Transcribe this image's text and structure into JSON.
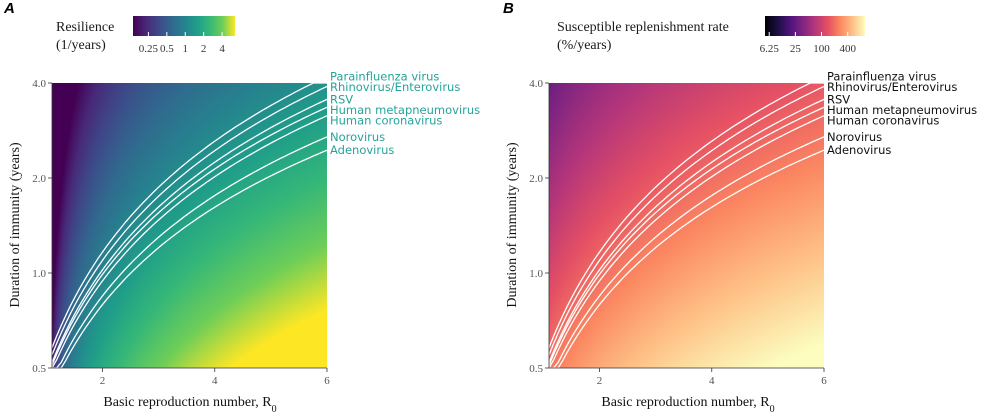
{
  "chart_data": [
    {
      "panel": "A",
      "type": "heatmap",
      "title": "",
      "legend": {
        "title_lines": [
          "Resilience",
          "(1/years)"
        ],
        "scale": "log",
        "palette": "viridis",
        "ticks": [
          0.25,
          0.5,
          1,
          2,
          4
        ],
        "tick_labels": [
          "0.25",
          "0.5",
          "1",
          "2",
          "4"
        ],
        "range": [
          0.14,
          6.5
        ],
        "placement": "top-left"
      },
      "xlabel": "Basic reproduction number, R",
      "xlabel_sub": "0",
      "ylabel": "Duration of immunity (years)",
      "xlim": [
        1.1,
        6
      ],
      "ylim": [
        0.5,
        4.0
      ],
      "yscale": "log",
      "xticks": [
        2,
        4,
        6
      ],
      "xtick_labels": [
        "2",
        "4",
        "6"
      ],
      "yticks": [
        0.5,
        1.0,
        2.0,
        4.0
      ],
      "ytick_labels": [
        "0.5",
        "1.0",
        "2.0",
        "4.0"
      ],
      "label_color": "#27a39b",
      "series": [
        {
          "name": "Parainfluenza virus",
          "values": [
            0.58,
            4.2
          ]
        },
        {
          "name": "Rhinovirus/Enterovirus",
          "values": [
            0.55,
            3.9
          ]
        },
        {
          "name": "RSV",
          "values": [
            0.52,
            3.55
          ]
        },
        {
          "name": "Human metapneumovirus",
          "values": [
            0.51,
            3.35
          ]
        },
        {
          "name": "Human coronavirus",
          "values": [
            0.49,
            3.15
          ]
        },
        {
          "name": "Norovirus",
          "values": [
            0.45,
            2.7
          ]
        },
        {
          "name": "Adenovirus",
          "values": [
            0.43,
            2.45
          ]
        }
      ]
    },
    {
      "panel": "B",
      "type": "heatmap",
      "title": "",
      "legend": {
        "title_lines": [
          "Susceptible replenishment rate",
          "(%/years)"
        ],
        "scale": "log",
        "palette": "magma",
        "ticks": [
          6.25,
          25,
          100,
          400
        ],
        "tick_labels": [
          "6.25",
          "25",
          "100",
          "400"
        ],
        "range": [
          5,
          1000
        ],
        "placement": "top-left"
      },
      "xlabel": "Basic reproduction number, R",
      "xlabel_sub": "0",
      "ylabel": "Duration of immunity (years)",
      "xlim": [
        1.1,
        6
      ],
      "ylim": [
        0.5,
        4.0
      ],
      "yscale": "log",
      "xticks": [
        2,
        4,
        6
      ],
      "xtick_labels": [
        "2",
        "4",
        "6"
      ],
      "yticks": [
        0.5,
        1.0,
        2.0,
        4.0
      ],
      "ytick_labels": [
        "0.5",
        "1.0",
        "2.0",
        "4.0"
      ],
      "label_color": "#111111",
      "series": [
        {
          "name": "Parainfluenza virus",
          "values": [
            0.58,
            4.2
          ]
        },
        {
          "name": "Rhinovirus/Enterovirus",
          "values": [
            0.55,
            3.9
          ]
        },
        {
          "name": "RSV",
          "values": [
            0.52,
            3.55
          ]
        },
        {
          "name": "Human metapneumovirus",
          "values": [
            0.51,
            3.35
          ]
        },
        {
          "name": "Human coronavirus",
          "values": [
            0.49,
            3.15
          ]
        },
        {
          "name": "Norovirus",
          "values": [
            0.45,
            2.7
          ]
        },
        {
          "name": "Adenovirus",
          "values": [
            0.43,
            2.45
          ]
        }
      ]
    }
  ]
}
